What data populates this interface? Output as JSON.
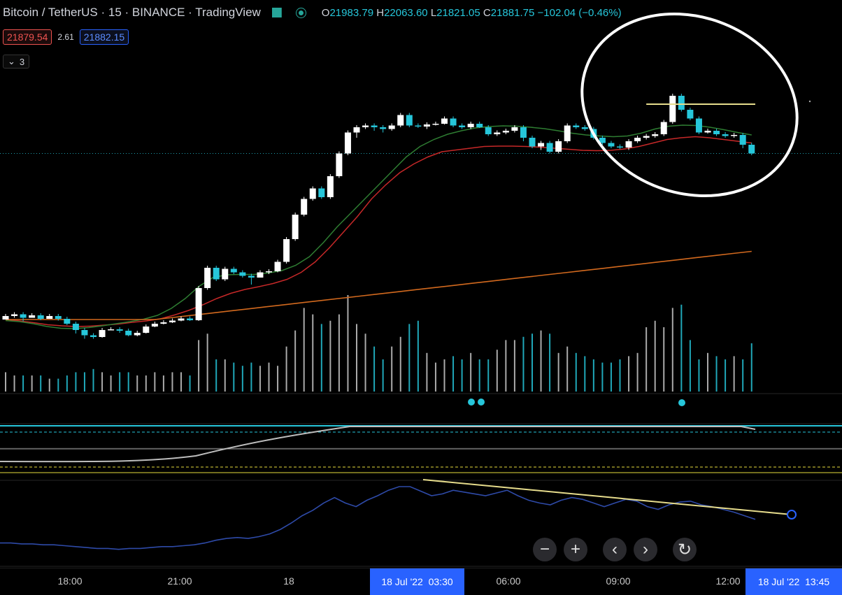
{
  "header": {
    "symbol": "Bitcoin / TetherUS · 15 · BINANCE · TradingView",
    "ohlc": {
      "o_label": "O",
      "o": "21983.79",
      "h_label": "H",
      "h": "22063.60",
      "l_label": "L",
      "l": "21821.05",
      "c_label": "C",
      "c": "21881.75",
      "change": "−102.04 (−0.46%)"
    }
  },
  "trade": {
    "bid": "21879.54",
    "spread": "2.61",
    "ask": "21882.15"
  },
  "indicators_collapsed": {
    "count": "3",
    "chevron": "chevron-down-icon"
  },
  "colors": {
    "up": "#ffffff",
    "down": "#26c6da",
    "ma_fast": "#2e7d32",
    "ma_mid": "#c62828",
    "ma_slow": "#d2691e",
    "annotation": "#ffffff",
    "level_line": "#e6dc8c",
    "rsi": "#2e4aa8",
    "trend": "#e6dc8c",
    "signal_dot": "#26c6da",
    "highlight": "#2962ff"
  },
  "controls": [
    {
      "name": "zoom-out-button",
      "icon": "minus-icon",
      "glyph": "−"
    },
    {
      "name": "zoom-in-button",
      "icon": "plus-icon",
      "glyph": "+"
    },
    {
      "name": "scroll-left-button",
      "icon": "chevron-left-icon",
      "glyph": "‹"
    },
    {
      "name": "scroll-right-button",
      "icon": "chevron-right-icon",
      "glyph": "›"
    },
    {
      "name": "reset-chart-button",
      "icon": "refresh-icon",
      "glyph": "↻"
    }
  ],
  "time_axis": {
    "labels": [
      "18:00",
      "21:00",
      "18",
      "06:00",
      "09:00",
      "12:00"
    ],
    "highlight_left": {
      "date": "18 Jul '22",
      "time": "03:30"
    },
    "highlight_right": {
      "date": "18 Jul '22",
      "time": "13:45"
    }
  },
  "chart_data": {
    "type": "candlestick",
    "interval": "15m",
    "candles": [
      [
        0,
        0,
        1.0,
        0.0,
        1
      ],
      [
        1,
        1.0,
        1.5,
        0.5,
        1
      ],
      [
        2,
        1.5,
        0.5,
        -0.5,
        0
      ],
      [
        3,
        0.5,
        1.2,
        0.5,
        1
      ],
      [
        4,
        1.2,
        0.2,
        -0.2,
        0
      ],
      [
        5,
        0.2,
        1.0,
        0.2,
        1
      ],
      [
        6,
        1.0,
        0.2,
        -0.3,
        0
      ],
      [
        7,
        0.2,
        -1.2,
        -1.6,
        0
      ],
      [
        8,
        -1.2,
        -3.0,
        -4.0,
        0
      ],
      [
        9,
        -3.0,
        -4.5,
        -5.5,
        0
      ],
      [
        10,
        -4.5,
        -5.0,
        -5.5,
        0
      ],
      [
        11,
        -5.0,
        -3.0,
        -5.2,
        1
      ],
      [
        12,
        -3.0,
        -2.8,
        -2.0,
        1
      ],
      [
        13,
        -2.8,
        -3.2,
        -3.8,
        0
      ],
      [
        14,
        -3.2,
        -4.5,
        -4.8,
        0
      ],
      [
        15,
        -4.5,
        -3.8,
        -4.8,
        1
      ],
      [
        16,
        -3.8,
        -2.0,
        -4.0,
        1
      ],
      [
        17,
        -2.0,
        -1.2,
        -2.2,
        1
      ],
      [
        18,
        -1.2,
        -0.8,
        -1.4,
        1
      ],
      [
        19,
        -0.8,
        -0.3,
        -1.0,
        1
      ],
      [
        20,
        -0.3,
        0.3,
        -0.5,
        1
      ],
      [
        21,
        0.3,
        -0.2,
        -0.4,
        0
      ],
      [
        22,
        -0.2,
        9.0,
        -0.4,
        1
      ],
      [
        23,
        9.0,
        14.8,
        8.5,
        1
      ],
      [
        24,
        14.8,
        11.5,
        11.0,
        0
      ],
      [
        25,
        11.5,
        14.5,
        11.0,
        1
      ],
      [
        26,
        14.5,
        13.5,
        13.0,
        0
      ],
      [
        27,
        13.5,
        12.5,
        12.0,
        0
      ],
      [
        28,
        12.5,
        12.0,
        10.0,
        0
      ],
      [
        29,
        12.0,
        13.5,
        12.0,
        1
      ],
      [
        30,
        13.5,
        13.8,
        13.0,
        1
      ],
      [
        31,
        13.8,
        16.5,
        13.5,
        1
      ],
      [
        32,
        16.5,
        23.0,
        16.0,
        1
      ],
      [
        33,
        23.0,
        30.0,
        22.5,
        1
      ],
      [
        34,
        30.0,
        34.5,
        29.5,
        1
      ],
      [
        35,
        34.5,
        37.5,
        34.0,
        1
      ],
      [
        36,
        37.5,
        35.0,
        34.5,
        0
      ],
      [
        37,
        35.0,
        41.0,
        34.5,
        1
      ],
      [
        38,
        41.0,
        47.5,
        40.5,
        1
      ],
      [
        39,
        47.5,
        53.5,
        47.0,
        1
      ],
      [
        40,
        53.5,
        55.0,
        52.0,
        1
      ],
      [
        41,
        55.0,
        55.5,
        54.5,
        1
      ],
      [
        42,
        55.5,
        55.0,
        54.0,
        0
      ],
      [
        43,
        55.0,
        54.5,
        53.5,
        0
      ],
      [
        44,
        54.5,
        55.5,
        54.0,
        1
      ],
      [
        45,
        55.5,
        58.5,
        55.0,
        1
      ],
      [
        46,
        58.5,
        55.5,
        55.0,
        0
      ],
      [
        47,
        55.5,
        55.2,
        54.8,
        0
      ],
      [
        48,
        55.2,
        55.8,
        54.5,
        1
      ],
      [
        49,
        55.8,
        56.0,
        55.5,
        1
      ],
      [
        50,
        56.0,
        57.5,
        55.8,
        1
      ],
      [
        51,
        57.5,
        55.5,
        55.0,
        0
      ],
      [
        52,
        55.5,
        55.0,
        54.5,
        0
      ],
      [
        53,
        55.0,
        56.0,
        54.5,
        1
      ],
      [
        54,
        56.0,
        55.0,
        54.8,
        0
      ],
      [
        55,
        55.0,
        53.0,
        52.5,
        0
      ],
      [
        56,
        53.0,
        53.5,
        52.5,
        1
      ],
      [
        57,
        53.5,
        54.0,
        53.0,
        1
      ],
      [
        58,
        54.0,
        55.0,
        53.5,
        1
      ],
      [
        59,
        55.0,
        52.0,
        51.0,
        0
      ],
      [
        60,
        52.0,
        49.5,
        49.0,
        0
      ],
      [
        61,
        49.5,
        50.5,
        48.5,
        1
      ],
      [
        62,
        50.5,
        48.0,
        47.5,
        0
      ],
      [
        63,
        48.0,
        51.0,
        47.5,
        1
      ],
      [
        64,
        51.0,
        55.5,
        50.5,
        1
      ],
      [
        65,
        55.5,
        55.0,
        54.5,
        0
      ],
      [
        66,
        55.0,
        54.5,
        54.0,
        0
      ],
      [
        67,
        54.5,
        52.0,
        51.5,
        0
      ],
      [
        68,
        52.0,
        50.5,
        50.0,
        0
      ],
      [
        69,
        50.5,
        49.5,
        49.0,
        0
      ],
      [
        70,
        49.5,
        49.2,
        48.8,
        0
      ],
      [
        71,
        49.2,
        51.0,
        48.5,
        1
      ],
      [
        72,
        51.0,
        52.0,
        50.5,
        1
      ],
      [
        73,
        52.0,
        52.5,
        51.5,
        1
      ],
      [
        74,
        52.5,
        53.0,
        52.0,
        1
      ],
      [
        75,
        53.0,
        56.5,
        52.5,
        1
      ],
      [
        76,
        56.5,
        64.0,
        56.0,
        1
      ],
      [
        77,
        64.0,
        60.0,
        59.5,
        0
      ],
      [
        78,
        60.0,
        57.5,
        57.0,
        0
      ],
      [
        79,
        57.5,
        53.5,
        53.0,
        0
      ],
      [
        80,
        53.5,
        54.0,
        53.2,
        1
      ],
      [
        81,
        54.0,
        53.0,
        52.5,
        0
      ],
      [
        82,
        53.0,
        52.5,
        52.0,
        0
      ],
      [
        83,
        52.5,
        52.8,
        52.0,
        1
      ],
      [
        84,
        52.8,
        50.0,
        49.0,
        0
      ],
      [
        85,
        50.0,
        47.5,
        47.0,
        0
      ]
    ],
    "volume": [
      6,
      5,
      5,
      5,
      5,
      4,
      4,
      5,
      6,
      6,
      7,
      6,
      5,
      6,
      6,
      5,
      5,
      6,
      5,
      6,
      6,
      5,
      16,
      18,
      10,
      10,
      9,
      8,
      9,
      8,
      9,
      8,
      14,
      19,
      26,
      24,
      21,
      22,
      24,
      30,
      21,
      18,
      14,
      10,
      14,
      17,
      21,
      22,
      12,
      9,
      10,
      11,
      10,
      12,
      10,
      10,
      13,
      16,
      16,
      17,
      18,
      19,
      18,
      12,
      14,
      12,
      11,
      10,
      9,
      9,
      10,
      11,
      12,
      20,
      22,
      20,
      26,
      27,
      16,
      10,
      12,
      11,
      10,
      11,
      10,
      15
    ],
    "volume_last_n_is_up": "mixed",
    "ma_fast": [
      -0.3,
      -0.6,
      -1.2,
      -2.0,
      -2.5,
      -2.6,
      -2.3,
      -1.8,
      -1.2,
      -0.6,
      0.1,
      1.2,
      3.2,
      6.0,
      9.5,
      12.0,
      12.8,
      12.9,
      12.9,
      13.3,
      14.0,
      15.5,
      18.0,
      22.0,
      26.5,
      30.5,
      34.5,
      38.5,
      42.5,
      46.5,
      49.5,
      51.5,
      53.0,
      54.0,
      54.8,
      55.2,
      55.4,
      55.3,
      55.0,
      54.6,
      54.0,
      53.3,
      52.8,
      52.5,
      52.3,
      52.5,
      53.3,
      54.5,
      55.3,
      55.6,
      55.5,
      55.0,
      54.3,
      53.5,
      52.8
    ],
    "ma_mid": [
      0.0,
      -0.4,
      -0.9,
      -1.5,
      -1.8,
      -2.0,
      -1.9,
      -1.6,
      -1.3,
      -0.8,
      -0.4,
      0.2,
      1.3,
      2.6,
      4.2,
      6.0,
      7.5,
      8.6,
      9.4,
      10.3,
      11.5,
      13.5,
      16.5,
      20.5,
      25.0,
      29.5,
      34.5,
      38.5,
      42.0,
      44.5,
      46.5,
      48.0,
      48.5,
      49.0,
      49.5,
      49.6,
      49.6,
      49.5,
      49.3,
      49.0,
      48.7,
      48.4,
      48.3,
      48.4,
      48.8,
      49.5,
      50.5,
      51.5,
      52.0,
      52.3,
      52.0,
      51.5,
      51.0,
      50.5
    ],
    "ma_slow_endpoints": [
      [
        0,
        0.0
      ],
      [
        85,
        19.5
      ]
    ],
    "annotations": {
      "level_price": 56.5,
      "circle": "around candles 65-85"
    },
    "rsi": [
      18,
      18,
      17,
      17,
      16,
      16,
      15,
      14,
      13,
      12,
      12,
      11,
      12,
      12,
      13,
      14,
      14,
      15,
      16,
      18,
      21,
      23,
      24,
      23,
      25,
      28,
      33,
      40,
      48,
      54,
      62,
      68,
      62,
      58,
      65,
      70,
      76,
      80,
      80,
      75,
      70,
      72,
      76,
      74,
      72,
      70,
      73,
      76,
      70,
      65,
      62,
      60,
      65,
      68,
      66,
      62,
      58,
      62,
      66,
      64,
      58,
      55,
      60,
      63,
      64,
      60,
      58,
      55,
      52,
      48,
      44
    ],
    "rsi_trendline": {
      "from_index": 51,
      "to_index": 86
    }
  }
}
